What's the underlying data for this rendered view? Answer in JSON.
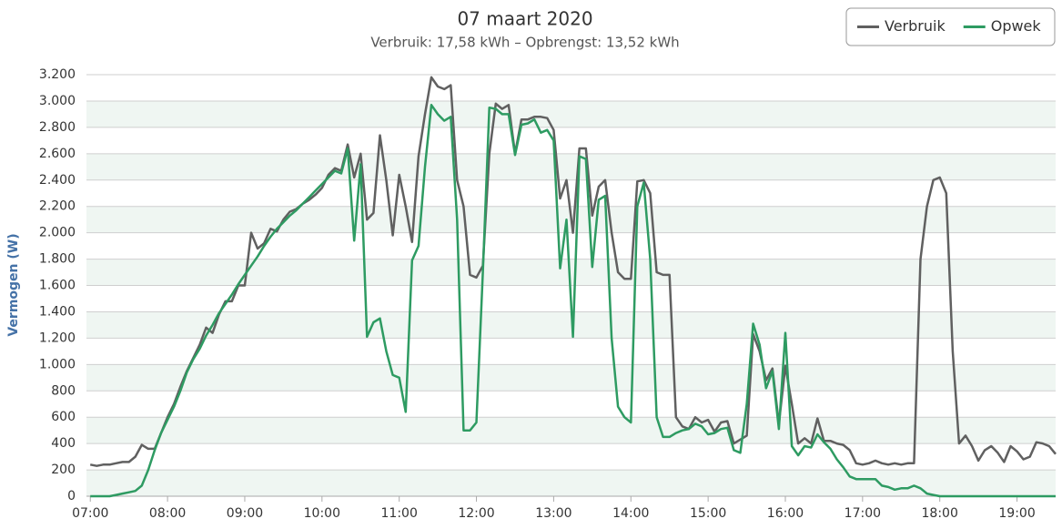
{
  "chart_data": {
    "type": "line",
    "title": "07 maart 2020",
    "subtitle": "Verbruik: 17,58 kWh – Opbrengst: 13,52 kWh",
    "y_label": "Vermogen (W)",
    "x": [
      "07:00",
      "07:05",
      "07:10",
      "07:15",
      "07:20",
      "07:25",
      "07:30",
      "07:35",
      "07:40",
      "07:45",
      "07:50",
      "07:55",
      "08:00",
      "08:05",
      "08:10",
      "08:15",
      "08:20",
      "08:25",
      "08:30",
      "08:35",
      "08:40",
      "08:45",
      "08:50",
      "08:55",
      "09:00",
      "09:05",
      "09:10",
      "09:15",
      "09:20",
      "09:25",
      "09:30",
      "09:35",
      "09:40",
      "09:45",
      "09:50",
      "09:55",
      "10:00",
      "10:05",
      "10:10",
      "10:15",
      "10:20",
      "10:25",
      "10:30",
      "10:35",
      "10:40",
      "10:45",
      "10:50",
      "10:55",
      "11:00",
      "11:05",
      "11:10",
      "11:15",
      "11:20",
      "11:25",
      "11:30",
      "11:35",
      "11:40",
      "11:45",
      "11:50",
      "11:55",
      "12:00",
      "12:05",
      "12:10",
      "12:15",
      "12:20",
      "12:25",
      "12:30",
      "12:35",
      "12:40",
      "12:45",
      "12:50",
      "12:55",
      "13:00",
      "13:05",
      "13:10",
      "13:15",
      "13:20",
      "13:25",
      "13:30",
      "13:35",
      "13:40",
      "13:45",
      "13:50",
      "13:55",
      "14:00",
      "14:05",
      "14:10",
      "14:15",
      "14:20",
      "14:25",
      "14:30",
      "14:35",
      "14:40",
      "14:45",
      "14:50",
      "14:55",
      "15:00",
      "15:05",
      "15:10",
      "15:15",
      "15:20",
      "15:25",
      "15:30",
      "15:35",
      "15:40",
      "15:45",
      "15:50",
      "15:55",
      "16:00",
      "16:05",
      "16:10",
      "16:15",
      "16:20",
      "16:25",
      "16:30",
      "16:35",
      "16:40",
      "16:45",
      "16:50",
      "16:55",
      "17:00",
      "17:05",
      "17:10",
      "17:15",
      "17:20",
      "17:25",
      "17:30",
      "17:35",
      "17:40",
      "17:45",
      "17:50",
      "17:55",
      "18:00",
      "18:05",
      "18:10",
      "18:15",
      "18:20",
      "18:25",
      "18:30",
      "18:35",
      "18:40",
      "18:45",
      "18:50",
      "18:55",
      "19:00",
      "19:05",
      "19:10",
      "19:15",
      "19:20",
      "19:25",
      "19:30"
    ],
    "series": [
      {
        "name": "Verbruik",
        "color": "#606060",
        "values": [
          240,
          230,
          240,
          240,
          250,
          260,
          260,
          300,
          390,
          360,
          360,
          480,
          600,
          700,
          830,
          950,
          1050,
          1150,
          1280,
          1240,
          1380,
          1480,
          1480,
          1600,
          1600,
          2000,
          1880,
          1920,
          2030,
          2010,
          2100,
          2160,
          2180,
          2220,
          2250,
          2290,
          2340,
          2440,
          2490,
          2470,
          2670,
          2420,
          2600,
          2100,
          2150,
          2740,
          2400,
          1980,
          2440,
          2200,
          1930,
          2580,
          2900,
          3180,
          3110,
          3090,
          3120,
          2400,
          2200,
          1680,
          1660,
          1750,
          2600,
          2980,
          2940,
          2970,
          2600,
          2860,
          2860,
          2880,
          2880,
          2870,
          2780,
          2260,
          2400,
          2000,
          2640,
          2640,
          2130,
          2350,
          2400,
          2000,
          1700,
          1650,
          1650,
          2390,
          2400,
          2300,
          1700,
          1680,
          1680,
          600,
          530,
          510,
          600,
          560,
          580,
          490,
          560,
          570,
          400,
          430,
          460,
          1230,
          1100,
          880,
          970,
          550,
          990,
          700,
          400,
          440,
          400,
          590,
          420,
          420,
          400,
          390,
          350,
          250,
          240,
          250,
          270,
          250,
          240,
          250,
          240,
          250,
          250,
          1800,
          2200,
          2400,
          2420,
          2300,
          1100,
          400,
          460,
          380,
          270,
          350,
          380,
          330,
          260,
          380,
          340,
          280,
          300,
          410,
          400,
          380,
          320
        ]
      },
      {
        "name": "Opwek",
        "color": "#2e9b62",
        "values": [
          0,
          0,
          0,
          0,
          10,
          20,
          30,
          40,
          80,
          200,
          350,
          480,
          580,
          680,
          800,
          940,
          1040,
          1120,
          1220,
          1300,
          1390,
          1460,
          1530,
          1610,
          1680,
          1750,
          1820,
          1900,
          1970,
          2030,
          2080,
          2130,
          2170,
          2220,
          2270,
          2320,
          2370,
          2420,
          2470,
          2450,
          2640,
          1940,
          2520,
          1210,
          1320,
          1350,
          1100,
          920,
          900,
          640,
          1790,
          1900,
          2500,
          2970,
          2900,
          2850,
          2880,
          2100,
          500,
          500,
          560,
          1700,
          2950,
          2940,
          2900,
          2900,
          2590,
          2820,
          2830,
          2860,
          2760,
          2780,
          2700,
          1730,
          2100,
          1210,
          2580,
          2560,
          1740,
          2250,
          2280,
          1200,
          680,
          600,
          560,
          2200,
          2380,
          1800,
          600,
          450,
          450,
          480,
          500,
          510,
          550,
          530,
          470,
          480,
          510,
          520,
          350,
          330,
          700,
          1310,
          1150,
          820,
          950,
          510,
          1240,
          380,
          310,
          380,
          370,
          470,
          410,
          360,
          280,
          220,
          150,
          130,
          130,
          130,
          130,
          80,
          70,
          50,
          60,
          60,
          80,
          60,
          20,
          10,
          0,
          0,
          0,
          0,
          0,
          0,
          0,
          0,
          0,
          0,
          0,
          0,
          0,
          0,
          0,
          0,
          0,
          0,
          0
        ]
      }
    ],
    "xlim": [
      "06:57",
      "19:30"
    ],
    "xticks": [
      "07:00",
      "08:00",
      "09:00",
      "10:00",
      "11:00",
      "12:00",
      "13:00",
      "14:00",
      "15:00",
      "16:00",
      "17:00",
      "18:00",
      "19:00"
    ],
    "ylim": [
      0,
      3200
    ],
    "yticks": [
      0,
      200,
      400,
      600,
      800,
      {
        "value": 1000,
        "label": "1.000"
      },
      {
        "value": 1200,
        "label": "1.200"
      },
      {
        "value": 1400,
        "label": "1.400"
      },
      {
        "value": 1600,
        "label": "1.600"
      },
      {
        "value": 1800,
        "label": "1.800"
      },
      {
        "value": 2000,
        "label": "2.000"
      },
      {
        "value": 2200,
        "label": "2.200"
      },
      {
        "value": 2400,
        "label": "2.400"
      },
      {
        "value": 2600,
        "label": "2.600"
      },
      {
        "value": 2800,
        "label": "2.800"
      },
      {
        "value": 3000,
        "label": "3.000"
      },
      {
        "value": 3200,
        "label": "3.200"
      }
    ],
    "grid": true,
    "legend": "top-right"
  }
}
